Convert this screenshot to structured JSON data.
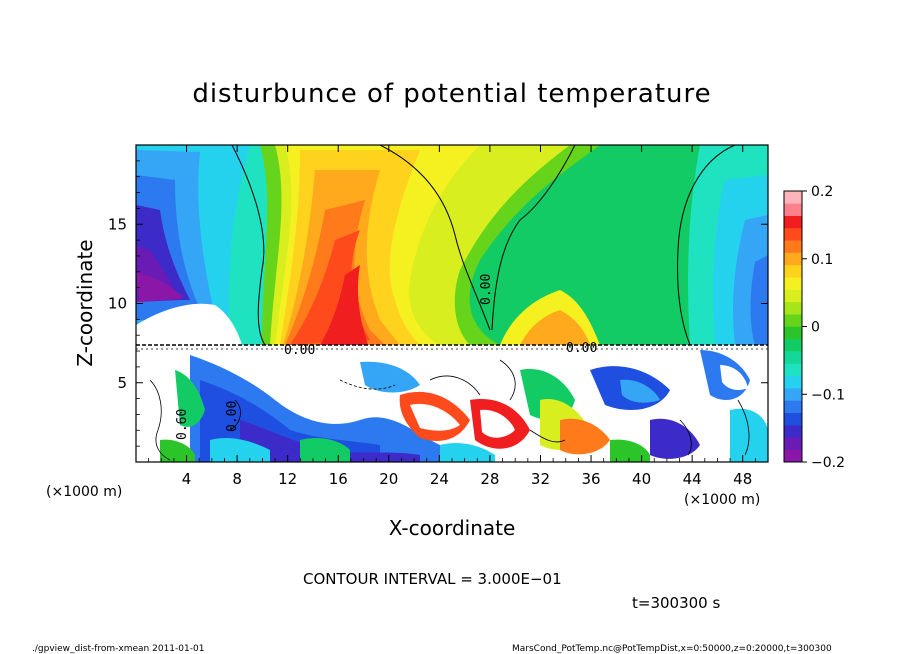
{
  "chart_data": {
    "type": "heatmap",
    "title": "disturbunce of potential temperature",
    "xlabel": "X-coordinate",
    "ylabel": "Z-coordinate",
    "x_unit": "(×1000 m)",
    "y_unit": "(×1000 m)",
    "xlim": [
      0,
      50
    ],
    "ylim": [
      0,
      20
    ],
    "x_ticks": [
      4,
      8,
      12,
      16,
      20,
      24,
      28,
      32,
      36,
      40,
      44,
      48
    ],
    "y_ticks": [
      5,
      10,
      15
    ],
    "colorbar": {
      "range": [
        -0.2,
        0.2
      ],
      "ticks": [
        {
          "value": 0.2,
          "label": "0.2"
        },
        {
          "value": 0.1,
          "label": "0.1"
        },
        {
          "value": 0,
          "label": "0"
        },
        {
          "value": -0.1,
          "label": "−0.1"
        },
        {
          "value": -0.2,
          "label": "−0.2"
        }
      ],
      "colors": [
        "#8B17A8",
        "#6A1BB5",
        "#3C2BC8",
        "#1F4FE0",
        "#2D7AF0",
        "#35A5F5",
        "#24D2EE",
        "#1FE3C0",
        "#14D89A",
        "#13CB64",
        "#2BC52A",
        "#66D41A",
        "#A6E51A",
        "#D8EE1F",
        "#F5F01F",
        "#FFD21E",
        "#FFAA1C",
        "#FF7A1A",
        "#FF4A1C",
        "#F01E1E",
        "#FF7F8A",
        "#FFB3BA"
      ]
    },
    "contour_labels": [
      "0.00",
      "0.00",
      "0.00",
      "0.60",
      "0.00",
      "0.00"
    ],
    "contour_interval": "CONTOUR INTERVAL = 3.000E−01",
    "time_label": "t=300300  s"
  },
  "footer": {
    "left": "./gpview_dist-from-xmean  2011-01-01",
    "right": "MarsCond_PotTemp.nc@PotTempDist,x=0:50000,z=0:20000,t=300300"
  }
}
